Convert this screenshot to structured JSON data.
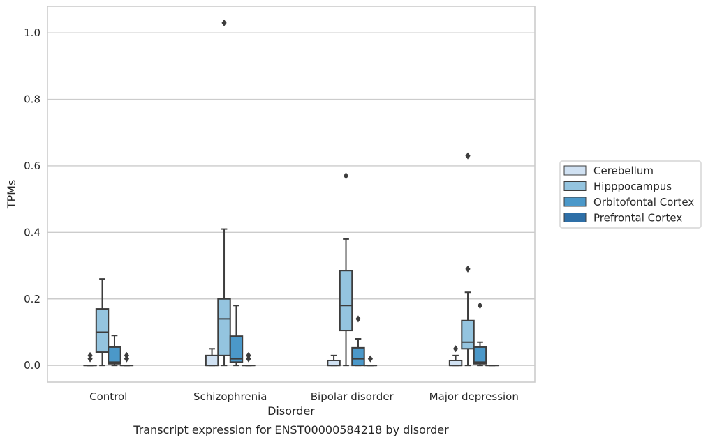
{
  "chart_data": {
    "type": "box",
    "xlabel": "Disorder",
    "ylabel": "TPMs",
    "caption": "Transcript expression for ENST00000584218 by disorder",
    "ylim": [
      -0.05,
      1.08
    ],
    "yticks": [
      "0.0",
      "0.2",
      "0.4",
      "0.6",
      "0.8",
      "1.0"
    ],
    "grid": "horizontal",
    "legend_position": "right",
    "categories": [
      "Control",
      "Schizophrenia",
      "Bipolar disorder",
      "Major depression"
    ],
    "series": [
      {
        "name": "Cerebellum",
        "color": "#d0e1f2",
        "boxes": [
          {
            "min": 0,
            "q1": 0,
            "median": 0,
            "q3": 0,
            "max": 0,
            "outliers": [
              0.02,
              0.03
            ]
          },
          {
            "min": 0,
            "q1": 0,
            "median": 0,
            "q3": 0.03,
            "max": 0.05,
            "outliers": []
          },
          {
            "min": 0,
            "q1": 0,
            "median": 0,
            "q3": 0.015,
            "max": 0.03,
            "outliers": []
          },
          {
            "min": 0,
            "q1": 0,
            "median": 0,
            "q3": 0.015,
            "max": 0.03,
            "outliers": [
              0.05
            ]
          }
        ]
      },
      {
        "name": "Hipppocampus",
        "color": "#94c4df",
        "boxes": [
          {
            "min": 0,
            "q1": 0.04,
            "median": 0.1,
            "q3": 0.17,
            "max": 0.26,
            "outliers": []
          },
          {
            "min": 0,
            "q1": 0.03,
            "median": 0.14,
            "q3": 0.2,
            "max": 0.41,
            "outliers": [
              1.03
            ]
          },
          {
            "min": 0,
            "q1": 0.105,
            "median": 0.18,
            "q3": 0.285,
            "max": 0.38,
            "outliers": [
              0.57
            ]
          },
          {
            "min": 0,
            "q1": 0.05,
            "median": 0.07,
            "q3": 0.135,
            "max": 0.22,
            "outliers": [
              0.29,
              0.63
            ]
          }
        ]
      },
      {
        "name": "Orbitofontal Cortex",
        "color": "#4b98c9",
        "boxes": [
          {
            "min": 0,
            "q1": 0.005,
            "median": 0.01,
            "q3": 0.055,
            "max": 0.09,
            "outliers": []
          },
          {
            "min": 0,
            "q1": 0.01,
            "median": 0.02,
            "q3": 0.088,
            "max": 0.18,
            "outliers": []
          },
          {
            "min": 0,
            "q1": 0,
            "median": 0.02,
            "q3": 0.053,
            "max": 0.08,
            "outliers": [
              0.14
            ]
          },
          {
            "min": 0,
            "q1": 0.005,
            "median": 0.01,
            "q3": 0.055,
            "max": 0.07,
            "outliers": [
              0.18
            ]
          }
        ]
      },
      {
        "name": "Prefrontal Cortex",
        "color": "#2e6fa7",
        "boxes": [
          {
            "min": 0,
            "q1": 0,
            "median": 0,
            "q3": 0,
            "max": 0,
            "outliers": [
              0.02,
              0.03
            ]
          },
          {
            "min": 0,
            "q1": 0,
            "median": 0,
            "q3": 0,
            "max": 0,
            "outliers": [
              0.02,
              0.03
            ]
          },
          {
            "min": 0,
            "q1": 0,
            "median": 0,
            "q3": 0,
            "max": 0,
            "outliers": [
              0.02
            ]
          },
          {
            "min": 0,
            "q1": 0,
            "median": 0,
            "q3": 0,
            "max": 0,
            "outliers": []
          }
        ]
      }
    ]
  }
}
